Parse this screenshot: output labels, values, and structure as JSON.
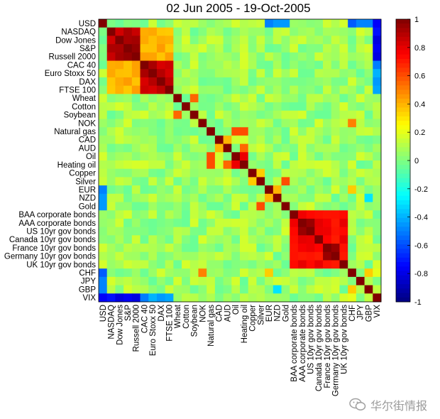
{
  "chart_data": {
    "type": "heatmap",
    "title": "02 Jun 2005 - 19-Oct-2005",
    "labels": [
      "USD",
      "NASDAQ",
      "Dow Jones",
      "S&P",
      "Russell 2000",
      "CAC 40",
      "Euro Stoxx 50",
      "DAX",
      "FTSE 100",
      "Wheat",
      "Cotton",
      "Soybean",
      "NOK",
      "Natural gas",
      "CAD",
      "AUD",
      "Oil",
      "Heating oil",
      "Copper",
      "Silver",
      "EUR",
      "NZD",
      "Gold",
      "BAA corporate bonds",
      "AAA corporate bonds",
      "US 10yr gov bonds",
      "Canada 10yr gov bonds",
      "France 10yr gov bonds",
      "Germany 10yr gov bonds",
      "UK 10yr gov bonds",
      "CHF",
      "JPY",
      "GBP",
      "VIX"
    ],
    "zlim": [
      -1,
      1
    ],
    "colorbar_ticks": [
      "1",
      "0.8",
      "0.6",
      "0.4",
      "0.2",
      "0",
      "-0.2",
      "-0.4",
      "-0.6",
      "-0.8",
      "-1"
    ],
    "blocks": [
      {
        "i": [
          1,
          4
        ],
        "j": [
          1,
          4
        ],
        "value": 0.9
      },
      {
        "i": [
          5,
          8
        ],
        "j": [
          5,
          8
        ],
        "value": 0.88
      },
      {
        "i": [
          1,
          4
        ],
        "j": [
          5,
          8
        ],
        "value": 0.4
      },
      {
        "i": [
          23,
          29
        ],
        "j": [
          23,
          29
        ],
        "value": 0.75
      },
      {
        "i": [
          16,
          17
        ],
        "j": [
          16,
          17
        ],
        "value": 0.75
      },
      {
        "i": [
          0,
          0
        ],
        "j": [
          30,
          33
        ],
        "value": -0.55
      },
      {
        "i": [
          33,
          33
        ],
        "j": [
          0,
          4
        ],
        "value": -0.75
      },
      {
        "i": [
          33,
          33
        ],
        "j": [
          5,
          8
        ],
        "value": -0.45
      }
    ],
    "pairs": [
      {
        "i": 24,
        "j": 25,
        "value": 0.95
      },
      {
        "i": 27,
        "j": 28,
        "value": 0.95
      },
      {
        "i": 13,
        "j": 16,
        "value": 0.6
      },
      {
        "i": 13,
        "j": 17,
        "value": 0.6
      },
      {
        "i": 15,
        "j": 17,
        "value": 0.55
      },
      {
        "i": 11,
        "j": 9,
        "value": 0.55
      },
      {
        "i": 19,
        "j": 22,
        "value": 0.6
      },
      {
        "i": 20,
        "j": 21,
        "value": 0.4
      },
      {
        "i": 12,
        "j": 30,
        "value": 0.5
      },
      {
        "i": 0,
        "j": 20,
        "value": -0.5
      },
      {
        "i": 0,
        "j": 21,
        "value": -0.45
      },
      {
        "i": 0,
        "j": 22,
        "value": -0.45
      },
      {
        "i": 20,
        "j": 30,
        "value": 0.35
      },
      {
        "i": 21,
        "j": 32,
        "value": -0.3
      },
      {
        "i": 30,
        "j": 32,
        "value": 0.35
      },
      {
        "i": 14,
        "j": 15,
        "value": 0.4
      },
      {
        "i": 18,
        "j": 19,
        "value": 0.35
      },
      {
        "i": 0,
        "j": 6,
        "value": 0.15
      },
      {
        "i": 33,
        "j": 30,
        "value": 0.2
      }
    ],
    "diagonal": 1
  },
  "watermark": {
    "text": "华尔街情报",
    "icon": "wechat-icon"
  }
}
